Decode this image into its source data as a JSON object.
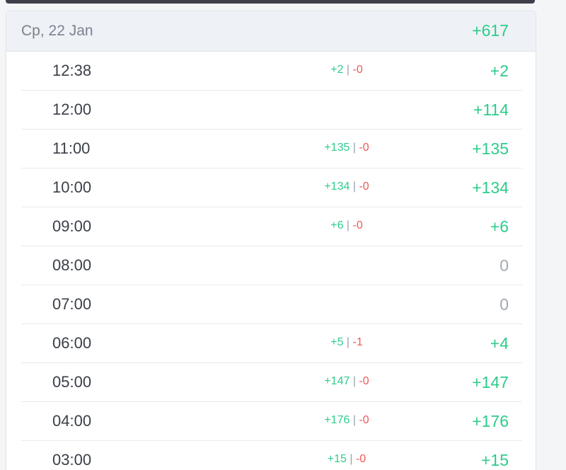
{
  "header": {
    "date": "Ср, 22 Jan",
    "total": "+617"
  },
  "rows": [
    {
      "time": "12:38",
      "plus": "+2",
      "minus": "-0",
      "net": "+2"
    },
    {
      "time": "12:00",
      "plus": "",
      "minus": "",
      "net": "+114"
    },
    {
      "time": "11:00",
      "plus": "+135",
      "minus": "-0",
      "net": "+135"
    },
    {
      "time": "10:00",
      "plus": "+134",
      "minus": "-0",
      "net": "+134"
    },
    {
      "time": "09:00",
      "plus": "+6",
      "minus": "-0",
      "net": "+6"
    },
    {
      "time": "08:00",
      "plus": "",
      "minus": "",
      "net": "0"
    },
    {
      "time": "07:00",
      "plus": "",
      "minus": "",
      "net": "0"
    },
    {
      "time": "06:00",
      "plus": "+5",
      "minus": "-1",
      "net": "+4"
    },
    {
      "time": "05:00",
      "plus": "+147",
      "minus": "-0",
      "net": "+147"
    },
    {
      "time": "04:00",
      "plus": "+176",
      "minus": "-0",
      "net": "+176"
    },
    {
      "time": "03:00",
      "plus": "+15",
      "minus": "-0",
      "net": "+15"
    }
  ],
  "colors": {
    "positive": "#2ecc8a",
    "negative": "#ec5a56",
    "neutral": "#a3a9b1",
    "header_bg": "#eef1f5"
  }
}
